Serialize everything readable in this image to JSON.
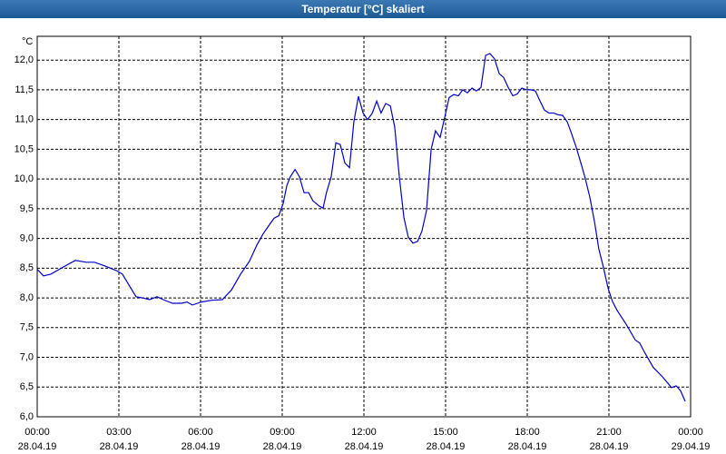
{
  "chart_data": {
    "type": "line",
    "title": "Temperatur [°C] skaliert",
    "y_label": "°C",
    "color": "#0000c8",
    "grid": true,
    "xlim": [
      0,
      24
    ],
    "ylim": [
      6.0,
      12.4
    ],
    "xticks": [
      {
        "value": 0,
        "label": "00:00\n28.04.19"
      },
      {
        "value": 3,
        "label": "03:00\n28.04.19"
      },
      {
        "value": 6,
        "label": "06:00\n28.04.19"
      },
      {
        "value": 9,
        "label": "09:00\n28.04.19"
      },
      {
        "value": 12,
        "label": "12:00\n28.04.19"
      },
      {
        "value": 15,
        "label": "15:00\n28.04.19"
      },
      {
        "value": 18,
        "label": "18:00\n28.04.19"
      },
      {
        "value": 21,
        "label": "21:00\n28.04.19"
      },
      {
        "value": 24,
        "label": "00:00\n29.04.19"
      }
    ],
    "yticks": [
      {
        "value": 6.0,
        "label": "6,0"
      },
      {
        "value": 6.5,
        "label": "6,5"
      },
      {
        "value": 7.0,
        "label": "7,0"
      },
      {
        "value": 7.5,
        "label": "7,5"
      },
      {
        "value": 8.0,
        "label": "8,0"
      },
      {
        "value": 8.5,
        "label": "8,5"
      },
      {
        "value": 9.0,
        "label": "9,0"
      },
      {
        "value": 9.5,
        "label": "9,5"
      },
      {
        "value": 10.0,
        "label": "10,0"
      },
      {
        "value": 10.5,
        "label": "10,5"
      },
      {
        "value": 11.0,
        "label": "11,0"
      },
      {
        "value": 11.5,
        "label": "11,5"
      },
      {
        "value": 12.0,
        "label": "12,0"
      }
    ],
    "x": [
      0,
      0.23,
      0.5,
      1,
      1.4,
      1.8,
      2.1,
      2.47,
      2.9,
      3.13,
      3.63,
      3.87,
      4.13,
      4.4,
      4.63,
      4.97,
      5.3,
      5.5,
      5.7,
      6.03,
      6.4,
      6.8,
      7.13,
      7.47,
      7.8,
      8.07,
      8.3,
      8.53,
      8.7,
      8.87,
      9.03,
      9.17,
      9.3,
      9.47,
      9.63,
      9.8,
      9.97,
      10.13,
      10.37,
      10.5,
      10.63,
      10.8,
      10.97,
      11.13,
      11.3,
      11.47,
      11.63,
      11.8,
      11.97,
      12.13,
      12.3,
      12.47,
      12.63,
      12.8,
      12.97,
      13.13,
      13.3,
      13.47,
      13.63,
      13.8,
      13.97,
      14.13,
      14.3,
      14.47,
      14.63,
      14.8,
      14.97,
      15.13,
      15.3,
      15.47,
      15.63,
      15.8,
      15.97,
      16.13,
      16.3,
      16.47,
      16.63,
      16.8,
      16.97,
      17.13,
      17.3,
      17.47,
      17.63,
      17.8,
      17.97,
      18.13,
      18.3,
      18.47,
      18.63,
      18.8,
      18.97,
      19.13,
      19.3,
      19.47,
      19.63,
      19.8,
      19.97,
      20.13,
      20.3,
      20.47,
      20.63,
      20.8,
      20.97,
      21.13,
      21.3,
      21.63,
      21.97,
      22.13,
      22.3,
      22.63,
      22.97,
      23.3,
      23.47,
      23.63,
      23.8
    ],
    "values": [
      8.48,
      8.37,
      8.4,
      8.53,
      8.63,
      8.6,
      8.6,
      8.54,
      8.46,
      8.4,
      8.02,
      8.0,
      7.97,
      8.02,
      7.97,
      7.91,
      7.91,
      7.93,
      7.88,
      7.93,
      7.96,
      7.97,
      8.13,
      8.4,
      8.62,
      8.89,
      9.08,
      9.23,
      9.34,
      9.38,
      9.58,
      9.89,
      10.04,
      10.16,
      10.04,
      9.77,
      9.77,
      9.63,
      9.54,
      9.51,
      9.78,
      10.04,
      10.61,
      10.58,
      10.27,
      10.19,
      10.96,
      11.39,
      11.11,
      11.0,
      11.1,
      11.31,
      11.11,
      11.27,
      11.23,
      10.88,
      10.04,
      9.35,
      9.02,
      8.92,
      8.95,
      9.12,
      9.47,
      10.5,
      10.81,
      10.7,
      11.04,
      11.37,
      11.42,
      11.4,
      11.5,
      11.45,
      11.53,
      11.48,
      11.54,
      12.08,
      12.11,
      12.02,
      11.77,
      11.71,
      11.54,
      11.4,
      11.43,
      11.53,
      11.5,
      11.5,
      11.48,
      11.31,
      11.16,
      11.11,
      11.11,
      11.08,
      11.07,
      10.96,
      10.76,
      10.53,
      10.27,
      10.01,
      9.69,
      9.28,
      8.82,
      8.51,
      8.16,
      7.94,
      7.79,
      7.56,
      7.29,
      7.24,
      7.09,
      6.83,
      6.67,
      6.49,
      6.52,
      6.44,
      6.26
    ]
  }
}
